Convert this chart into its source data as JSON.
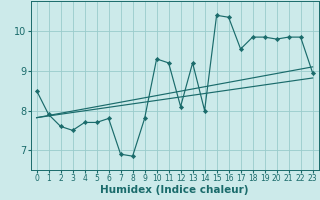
{
  "xlabel": "Humidex (Indice chaleur)",
  "bg_color": "#cceaea",
  "grid_color": "#99cccc",
  "line_color": "#1a6b6b",
  "line1_x": [
    0,
    1,
    2,
    3,
    4,
    5,
    6,
    7,
    8,
    9,
    10,
    11,
    12,
    13,
    14,
    15,
    16,
    17,
    18,
    19,
    20,
    21,
    22,
    23
  ],
  "line1_y": [
    8.5,
    7.9,
    7.6,
    7.5,
    7.7,
    7.7,
    7.8,
    6.9,
    6.85,
    7.8,
    9.3,
    9.2,
    8.1,
    9.2,
    8.0,
    10.4,
    10.35,
    9.55,
    9.85,
    9.85,
    9.8,
    9.85,
    9.85,
    8.95
  ],
  "line2_x": [
    0,
    23
  ],
  "line2_y": [
    7.82,
    9.1
  ],
  "line3_x": [
    0,
    23
  ],
  "line3_y": [
    7.82,
    8.82
  ],
  "xlim": [
    -0.5,
    23.5
  ],
  "ylim": [
    6.5,
    10.75
  ],
  "yticks": [
    7,
    8,
    9,
    10
  ],
  "xticks": [
    0,
    1,
    2,
    3,
    4,
    5,
    6,
    7,
    8,
    9,
    10,
    11,
    12,
    13,
    14,
    15,
    16,
    17,
    18,
    19,
    20,
    21,
    22,
    23
  ],
  "tick_fontsize": 5.5,
  "xlabel_fontsize": 7.5,
  "ytick_fontsize": 7.0,
  "marker": "D",
  "markersize": 2.2,
  "linewidth": 0.85
}
